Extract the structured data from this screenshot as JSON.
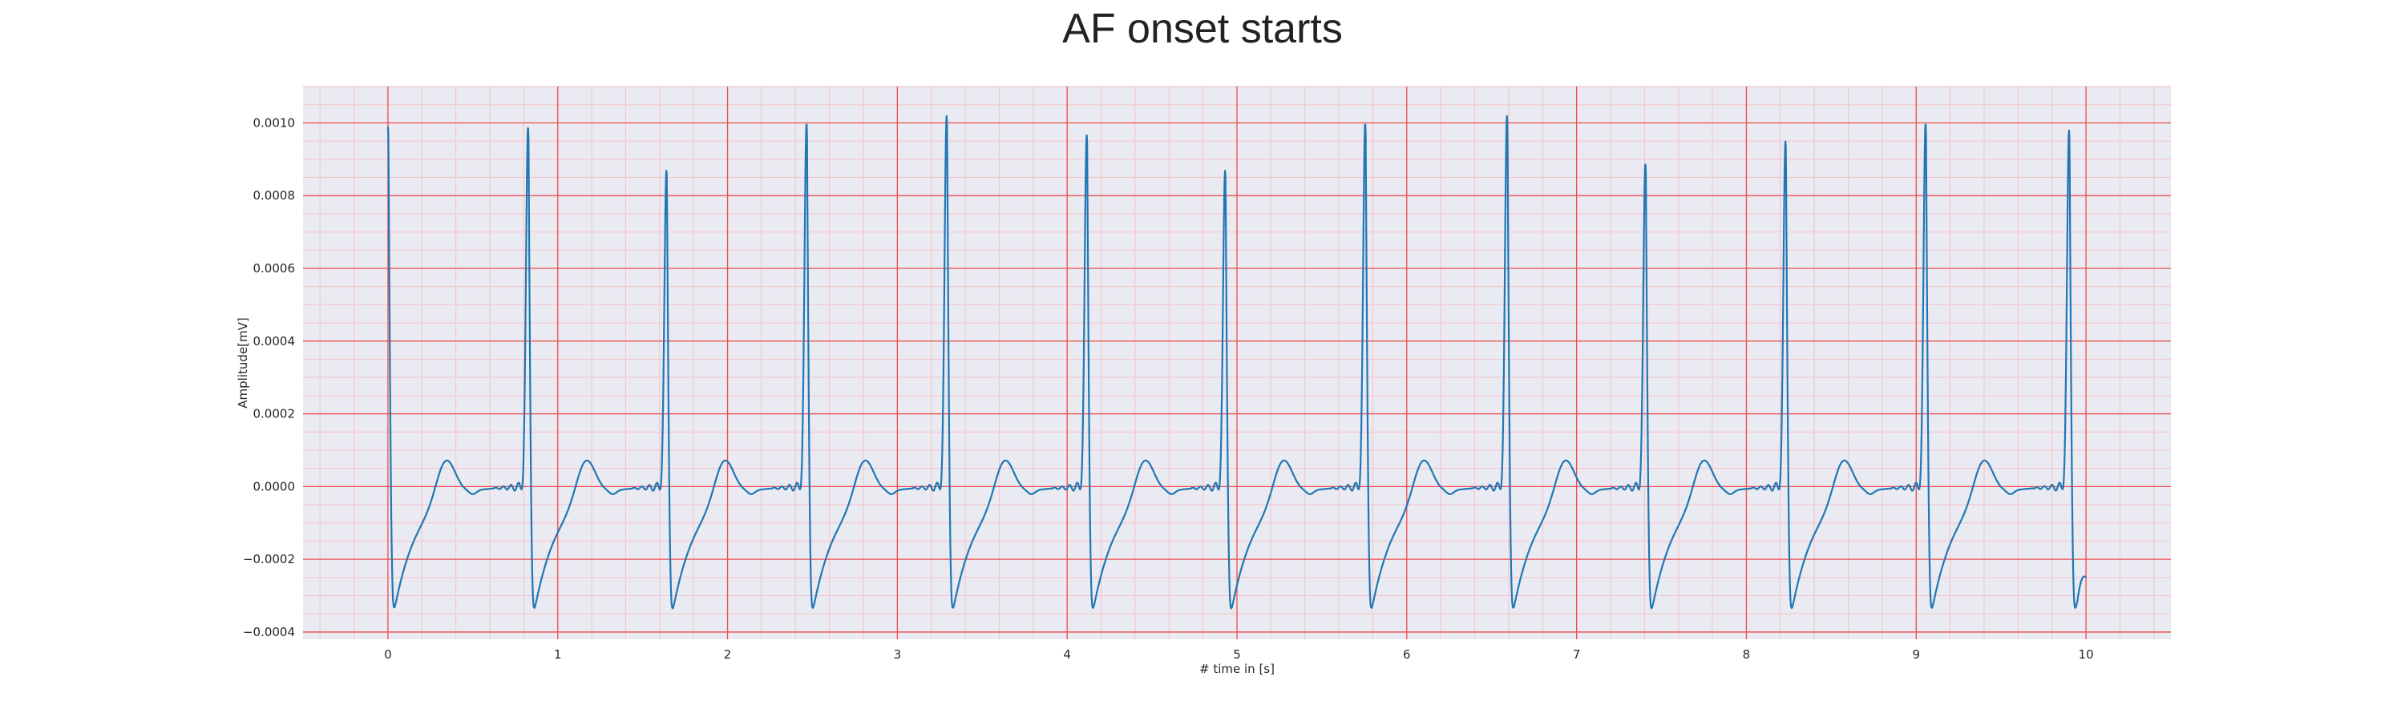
{
  "colors": {
    "plot_background": "#eaeaf2",
    "major_grid": "#ee4d4d",
    "minor_grid": "#f7c2c6",
    "line": "#1f77b4"
  },
  "chart_data": {
    "type": "line",
    "title": "AF onset starts",
    "xlabel": "# time in [s]",
    "ylabel": "Amplitude[mV]",
    "xlim": [
      -0.5,
      10.5
    ],
    "ylim": [
      -0.00042,
      0.0011
    ],
    "xticks": [
      0,
      1,
      2,
      3,
      4,
      5,
      6,
      7,
      8,
      9,
      10
    ],
    "xtick_labels": [
      "0",
      "1",
      "2",
      "3",
      "4",
      "5",
      "6",
      "7",
      "8",
      "9",
      "10"
    ],
    "yticks": [
      -0.0004,
      -0.0002,
      0.0,
      0.0002,
      0.0004,
      0.0006,
      0.0008,
      0.001
    ],
    "ytick_labels": [
      "−0.0004",
      "−0.0002",
      "0.0000",
      "0.0002",
      "0.0004",
      "0.0006",
      "0.0008",
      "0.0010"
    ],
    "grid": true,
    "minor_grid": true,
    "legend": "none",
    "series": [
      {
        "beat_r_peak_times": [
          0.0,
          0.825,
          1.64,
          2.465,
          3.29,
          4.115,
          4.93,
          5.755,
          6.59,
          7.405,
          8.23,
          9.055,
          9.9
        ],
        "beat_r_peak_amplitudes": [
          0.00099,
          0.00099,
          0.00087,
          0.001,
          0.00102,
          0.00097,
          0.00087,
          0.001,
          0.00102,
          0.00089,
          0.00095,
          0.001,
          0.00098
        ],
        "s_trough_amplitude": -0.00036,
        "t_wave_peak_amplitude": 0.00011,
        "end_time": 10.0,
        "end_amplitude": -0.00025
      }
    ]
  }
}
